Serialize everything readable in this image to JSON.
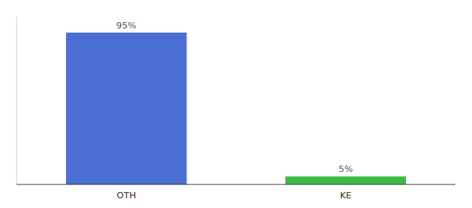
{
  "chart_data": {
    "type": "bar",
    "categories": [
      "OTH",
      "KE"
    ],
    "values": [
      95,
      5
    ],
    "value_labels": [
      "95%",
      "5%"
    ],
    "colors": [
      "#4b6fd4",
      "#3cb943"
    ],
    "ylim": [
      0,
      105
    ],
    "data_labels": true,
    "tick_labels": "x"
  }
}
